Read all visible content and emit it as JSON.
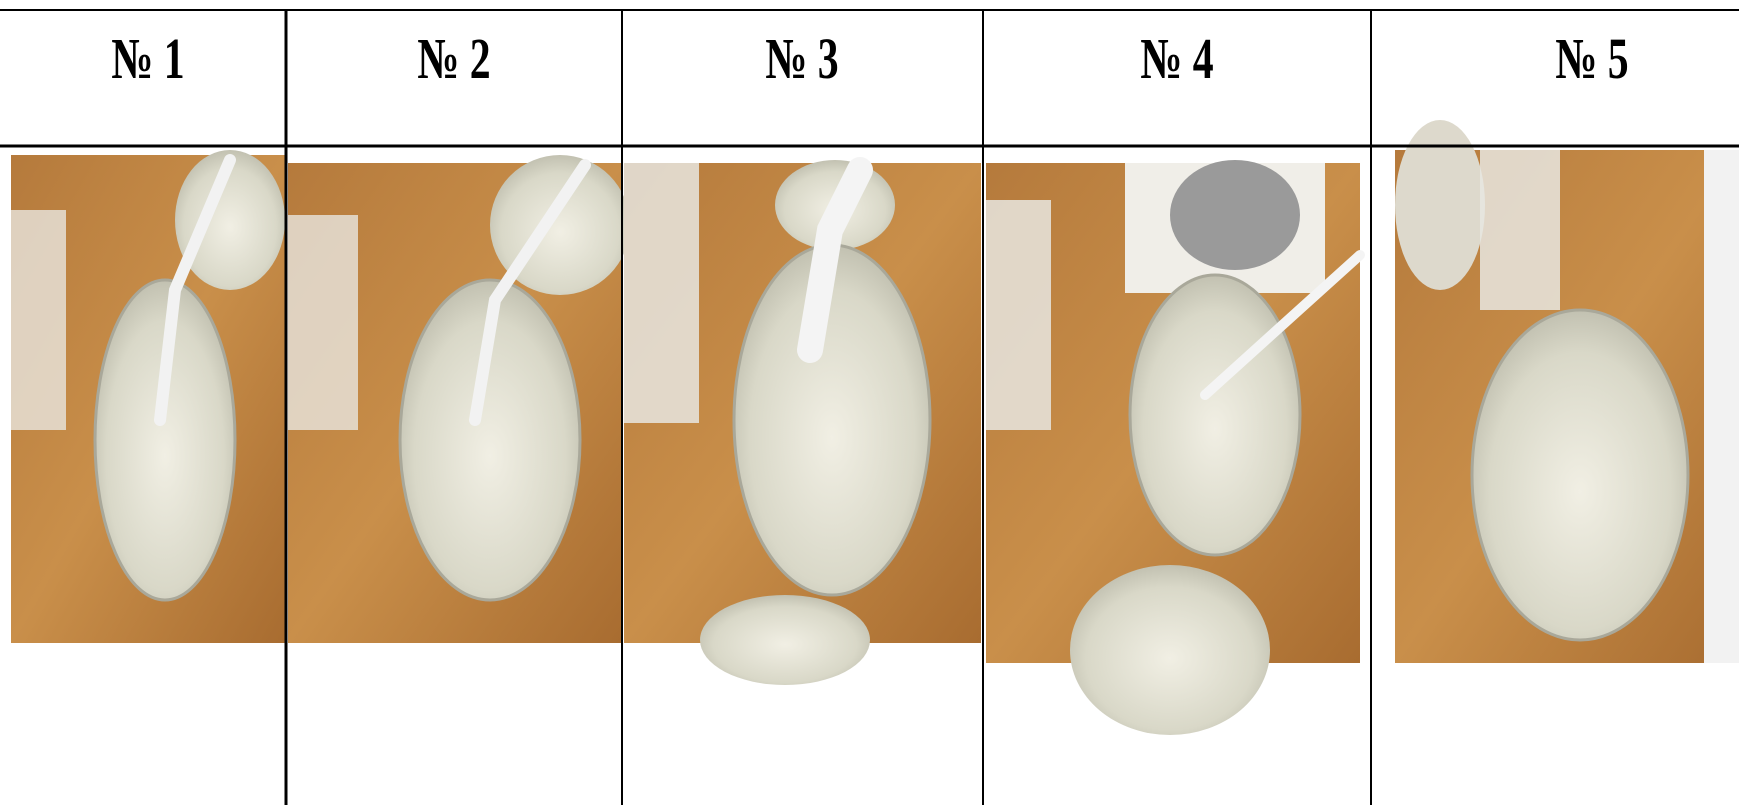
{
  "table": {
    "headers": [
      "№ 1",
      "№ 2",
      "№ 3",
      "№ 4",
      "№ 5"
    ]
  }
}
